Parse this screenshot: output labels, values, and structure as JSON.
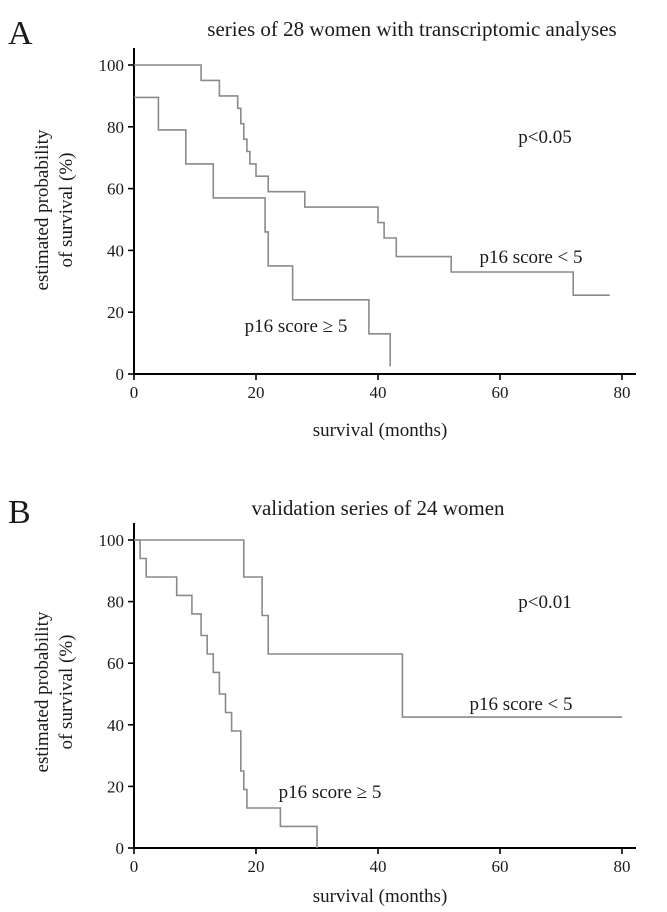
{
  "chart_data": [
    {
      "type": "line",
      "panel_label": "A",
      "title": "series of 28 women with transcriptomic analyses",
      "xlabel": "survival (months)",
      "ylabel": [
        "estimated probability",
        "of survival (%)"
      ],
      "xlim": [
        0,
        80
      ],
      "ylim": [
        0,
        100
      ],
      "x_ticks": [
        0,
        20,
        40,
        60,
        80
      ],
      "y_ticks": [
        0,
        20,
        40,
        60,
        80,
        100
      ],
      "grid": false,
      "legend": "none",
      "p_value": "p<0.05",
      "series": [
        {
          "name": "p16 score < 5",
          "steps": [
            [
              0,
              100
            ],
            [
              11,
              95
            ],
            [
              14,
              90
            ],
            [
              17,
              86
            ],
            [
              17.5,
              81
            ],
            [
              18,
              76
            ],
            [
              18.5,
              72
            ],
            [
              19,
              68
            ],
            [
              20,
              64
            ],
            [
              22,
              59
            ],
            [
              28,
              54
            ],
            [
              40,
              49
            ],
            [
              41,
              44
            ],
            [
              43,
              38
            ],
            [
              52,
              33
            ],
            [
              72,
              25.5
            ],
            [
              78,
              25.5
            ]
          ]
        },
        {
          "name": "p16 score ≥ 5",
          "steps": [
            [
              0,
              89.5
            ],
            [
              4,
              79
            ],
            [
              8.5,
              68
            ],
            [
              13,
              57
            ],
            [
              21.5,
              46
            ],
            [
              22,
              35
            ],
            [
              26,
              24
            ],
            [
              38.5,
              13
            ],
            [
              42,
              2.5
            ]
          ]
        }
      ]
    },
    {
      "type": "line",
      "panel_label": "B",
      "title": "validation series of 24 women",
      "xlabel": "survival (months)",
      "ylabel": [
        "estimated probability",
        "of survival (%)"
      ],
      "xlim": [
        0,
        80
      ],
      "ylim": [
        0,
        100
      ],
      "x_ticks": [
        0,
        20,
        40,
        60,
        80
      ],
      "y_ticks": [
        0,
        20,
        40,
        60,
        80,
        100
      ],
      "grid": false,
      "legend": "none",
      "p_value": "p<0.01",
      "series": [
        {
          "name": "p16 score < 5",
          "steps": [
            [
              0,
              100
            ],
            [
              18,
              88
            ],
            [
              21,
              75.5
            ],
            [
              22,
              63
            ],
            [
              44,
              42.5
            ],
            [
              80,
              42.5
            ]
          ]
        },
        {
          "name": "p16 score ≥ 5",
          "steps": [
            [
              0,
              100
            ],
            [
              1,
              94
            ],
            [
              2,
              88
            ],
            [
              7,
              82
            ],
            [
              9.5,
              76
            ],
            [
              11,
              69
            ],
            [
              12,
              63
            ],
            [
              13,
              57
            ],
            [
              14,
              50
            ],
            [
              15,
              44
            ],
            [
              16,
              38
            ],
            [
              17.5,
              25
            ],
            [
              18,
              19
            ],
            [
              18.5,
              13
            ],
            [
              24,
              7
            ],
            [
              30,
              0
            ]
          ]
        }
      ]
    }
  ]
}
